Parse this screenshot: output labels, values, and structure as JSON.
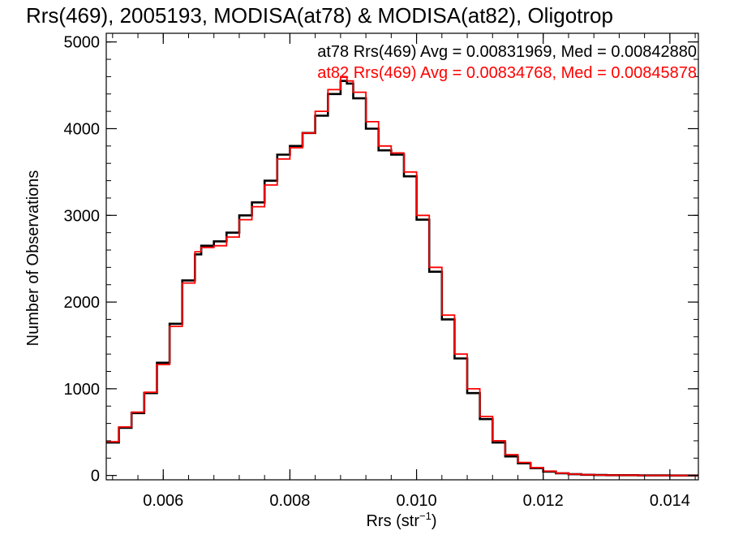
{
  "chart_data": {
    "type": "line",
    "title": "Rrs(469), 2005193, MODISA(at78) & MODISA(at82), Oligotrop",
    "xlabel": "Rrs (str",
    "xlabel_sup": "−1",
    "xlabel_end": ")",
    "ylabel": "Number of Observations",
    "xlim": [
      0.0051,
      0.01445
    ],
    "ylim": [
      -50,
      5100
    ],
    "xticks": [
      0.006,
      0.008,
      0.01,
      0.012,
      0.014
    ],
    "xtick_labels": [
      "0.006",
      "0.008",
      "0.010",
      "0.012",
      "0.014"
    ],
    "yticks": [
      0,
      1000,
      2000,
      3000,
      4000,
      5000
    ],
    "ytick_labels": [
      "0",
      "1000",
      "2000",
      "3000",
      "4000",
      "5000"
    ],
    "grid": false,
    "legend_position": "top-right",
    "series": [
      {
        "name": "at78 Rrs(469) Avg = 0.00831969, Med = 0.00842880",
        "color": "#000000",
        "x": [
          0.0051,
          0.0053,
          0.0055,
          0.0057,
          0.0059,
          0.0061,
          0.0063,
          0.0065,
          0.0066,
          0.0068,
          0.007,
          0.0072,
          0.0074,
          0.0076,
          0.0078,
          0.008,
          0.0082,
          0.0084,
          0.0086,
          0.0088,
          0.0089,
          0.009,
          0.0092,
          0.0094,
          0.0096,
          0.0098,
          0.01,
          0.0102,
          0.0104,
          0.0106,
          0.0108,
          0.011,
          0.0112,
          0.0114,
          0.0116,
          0.0118,
          0.012,
          0.0122,
          0.0124,
          0.0126,
          0.0128,
          0.013,
          0.0135,
          0.014,
          0.01445
        ],
        "y": [
          380,
          550,
          720,
          950,
          1300,
          1750,
          2250,
          2550,
          2650,
          2700,
          2800,
          3000,
          3150,
          3400,
          3700,
          3800,
          3950,
          4150,
          4400,
          4550,
          4520,
          4350,
          4000,
          3750,
          3700,
          3450,
          2950,
          2350,
          1800,
          1350,
          950,
          650,
          380,
          220,
          140,
          85,
          45,
          25,
          15,
          8,
          5,
          3,
          1,
          0,
          0
        ]
      },
      {
        "name": "at82 Rrs(469) Avg = 0.00834768, Med = 0.00845878",
        "color": "#ff0000",
        "x": [
          0.0051,
          0.0053,
          0.0055,
          0.0057,
          0.0059,
          0.0061,
          0.0063,
          0.0065,
          0.0066,
          0.0068,
          0.007,
          0.0072,
          0.0074,
          0.0076,
          0.0078,
          0.008,
          0.0082,
          0.0084,
          0.0086,
          0.0088,
          0.0089,
          0.009,
          0.0092,
          0.0094,
          0.0096,
          0.0098,
          0.01,
          0.0102,
          0.0104,
          0.0106,
          0.0108,
          0.011,
          0.0112,
          0.0114,
          0.0116,
          0.0118,
          0.012,
          0.0122,
          0.0124,
          0.0126,
          0.0128,
          0.013,
          0.0135,
          0.014,
          0.01445
        ],
        "y": [
          390,
          560,
          730,
          960,
          1280,
          1720,
          2220,
          2580,
          2630,
          2650,
          2750,
          2950,
          3100,
          3350,
          3650,
          3780,
          3950,
          4200,
          4450,
          4600,
          4550,
          4420,
          4080,
          3800,
          3720,
          3500,
          3000,
          2400,
          1850,
          1400,
          1000,
          680,
          400,
          240,
          150,
          90,
          50,
          28,
          16,
          9,
          5,
          3,
          1,
          0,
          0
        ]
      }
    ]
  }
}
